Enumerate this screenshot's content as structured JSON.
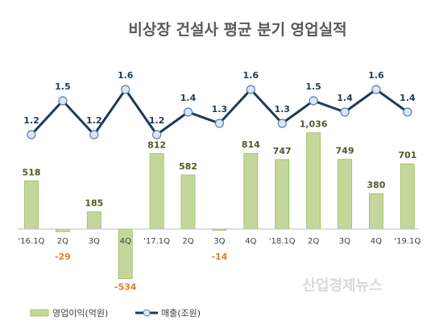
{
  "watermark": "산업경제뉴스",
  "chart_data": {
    "type": "bar+line",
    "title": "비상장 건설사 평균 분기 영업실적",
    "categories": [
      "'16.1Q",
      "2Q",
      "3Q",
      "4Q",
      "'17.1Q",
      "2Q",
      "3Q",
      "4Q",
      "'18.1Q",
      "2Q",
      "3Q",
      "4Q",
      "'19.1Q"
    ],
    "series": [
      {
        "name": "영업이익(억원)",
        "type": "bar",
        "color": "#c4d79b",
        "values": [
          518,
          -29,
          185,
          -534,
          812,
          582,
          -14,
          814,
          747,
          1036,
          749,
          380,
          701
        ]
      },
      {
        "name": "매출(조원)",
        "type": "line",
        "color": "#1f3a5a",
        "marker_fill": "#dce6f2",
        "values": [
          1.2,
          1.5,
          1.2,
          1.6,
          1.2,
          1.4,
          1.3,
          1.6,
          1.3,
          1.5,
          1.4,
          1.6,
          1.4
        ]
      }
    ],
    "value_labels_bar": [
      "518",
      "-29",
      "185",
      "-534",
      "812",
      "582",
      "-14",
      "814",
      "747",
      "1,036",
      "749",
      "380",
      "701"
    ],
    "value_labels_line": [
      "1.2",
      "1.5",
      "1.2",
      "1.6",
      "1.2",
      "1.4",
      "1.3",
      "1.6",
      "1.3",
      "1.5",
      "1.4",
      "1.6",
      "1.4"
    ],
    "bar_ylim": [
      -600,
      1100
    ],
    "line_ylim": [
      1.2,
      1.6
    ],
    "legend_position": "bottom-left",
    "grid": false
  }
}
